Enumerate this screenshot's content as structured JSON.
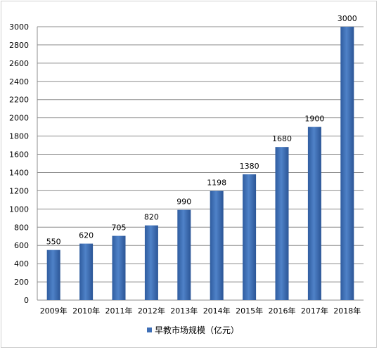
{
  "chart_data": {
    "type": "bar",
    "categories": [
      "2009年",
      "2010年",
      "2011年",
      "2012年",
      "2013年",
      "2014年",
      "2015年",
      "2016年",
      "2017年",
      "2018年"
    ],
    "series": [
      {
        "name": "早教市场规模（亿元）",
        "values": [
          550,
          620,
          705,
          820,
          990,
          1198,
          1380,
          1680,
          1900,
          3000
        ],
        "data_labels": [
          "550",
          "620",
          "705",
          "820",
          "990",
          "1198",
          "1380",
          "1680",
          "1900",
          "3000"
        ],
        "color": "#3f6fb6"
      }
    ],
    "ylim": [
      0,
      3000
    ],
    "yticks": [
      0,
      200,
      400,
      600,
      800,
      1000,
      1200,
      1400,
      1600,
      1800,
      2000,
      2200,
      2400,
      2600,
      2800,
      3000
    ],
    "ytick_labels": [
      "0",
      "200",
      "400",
      "600",
      "800",
      "1000",
      "1200",
      "1400",
      "1600",
      "1800",
      "2000",
      "2200",
      "2400",
      "2600",
      "2800",
      "3000"
    ],
    "grid": true,
    "legend_position": "bottom",
    "title": "",
    "xlabel": "",
    "ylabel": ""
  }
}
